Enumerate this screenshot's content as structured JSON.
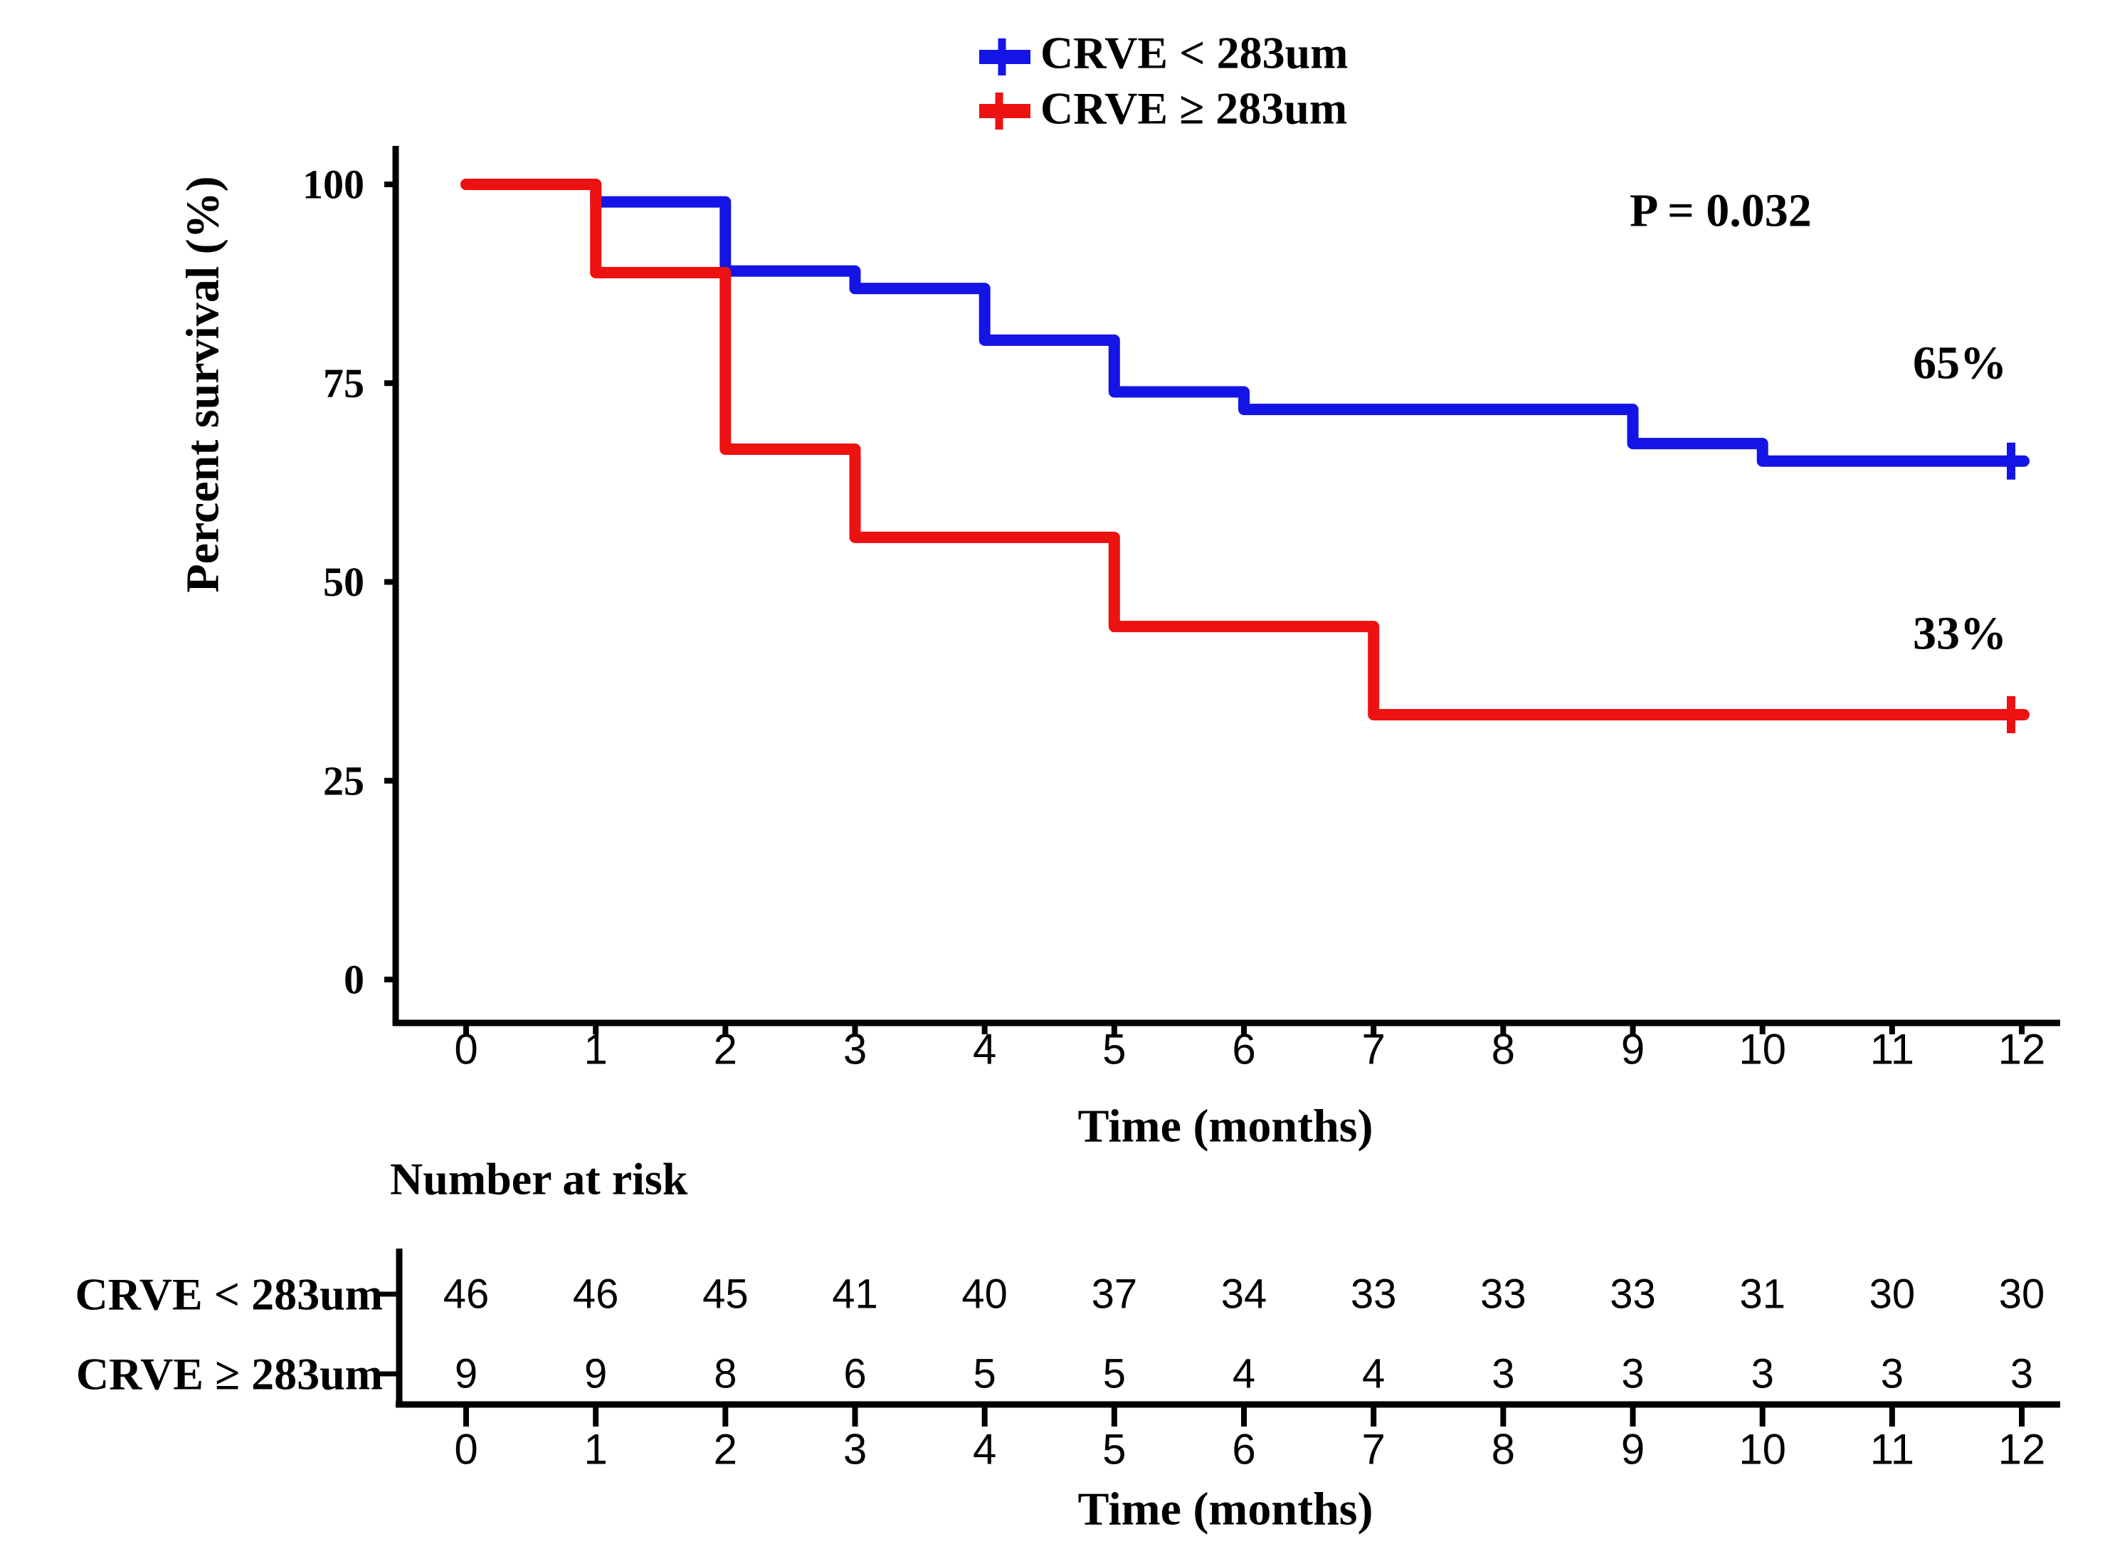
{
  "chart_data": {
    "type": "km_step",
    "title": "",
    "xlabel": "Time (months)",
    "ylabel": "Percent survival (%)",
    "x_ticks": [
      0,
      1,
      2,
      3,
      4,
      5,
      6,
      7,
      8,
      9,
      10,
      11,
      12
    ],
    "y_ticks": [
      100,
      75,
      50,
      25,
      0
    ],
    "xlim": [
      0,
      12
    ],
    "ylim": [
      0,
      100
    ],
    "grid": "off",
    "legend_position": "top-center",
    "annotations": {
      "p_value": "P = 0.032"
    },
    "series": [
      {
        "name": "CRVE < 283um",
        "color": "#1414E6",
        "end_label": "65%",
        "points": [
          [
            0,
            100
          ],
          [
            1,
            100
          ],
          [
            1,
            97.8
          ],
          [
            2,
            97.8
          ],
          [
            2,
            89.1
          ],
          [
            3,
            89.1
          ],
          [
            3,
            86.9
          ],
          [
            4,
            86.9
          ],
          [
            4,
            80.4
          ],
          [
            5,
            80.4
          ],
          [
            5,
            73.9
          ],
          [
            6,
            73.9
          ],
          [
            6,
            71.7
          ],
          [
            9,
            71.7
          ],
          [
            9,
            67.4
          ],
          [
            10,
            67.4
          ],
          [
            10,
            65.2
          ],
          [
            12,
            65.2
          ]
        ],
        "censor_times": [
          12
        ]
      },
      {
        "name": "CRVE ≥ 283um",
        "color": "#EE1111",
        "end_label": "33%",
        "points": [
          [
            0,
            100
          ],
          [
            1,
            100
          ],
          [
            1,
            88.9
          ],
          [
            2,
            88.9
          ],
          [
            2,
            66.7
          ],
          [
            3,
            66.7
          ],
          [
            3,
            55.6
          ],
          [
            5,
            55.6
          ],
          [
            5,
            44.4
          ],
          [
            7,
            44.4
          ],
          [
            7,
            33.3
          ],
          [
            12,
            33.3
          ]
        ],
        "censor_times": [
          12
        ]
      }
    ],
    "risk_table": {
      "title": "Number at risk",
      "time_label": "Time (months)",
      "times": [
        0,
        1,
        2,
        3,
        4,
        5,
        6,
        7,
        8,
        9,
        10,
        11,
        12
      ],
      "rows": [
        {
          "label": "CRVE < 283um",
          "color": "#1414E6",
          "values": [
            46,
            46,
            45,
            41,
            40,
            37,
            34,
            33,
            33,
            33,
            31,
            30,
            30
          ]
        },
        {
          "label": "CRVE ≥ 283um",
          "color": "#EE1111",
          "values": [
            9,
            9,
            8,
            6,
            5,
            5,
            4,
            4,
            3,
            3,
            3,
            3,
            3
          ]
        }
      ]
    }
  }
}
